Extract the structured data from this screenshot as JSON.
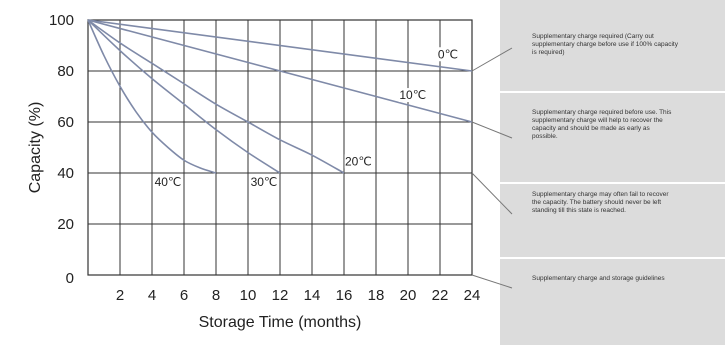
{
  "chart_data": {
    "type": "line",
    "title": "",
    "xlabel": "Storage Time (months)",
    "ylabel": "Capacity  (%)",
    "xlim": [
      0,
      24
    ],
    "ylim": [
      0,
      100
    ],
    "xticks": [
      2,
      4,
      6,
      8,
      10,
      12,
      14,
      16,
      18,
      20,
      22,
      24
    ],
    "yticks": [
      0,
      20,
      40,
      60,
      80,
      100
    ],
    "grid": true,
    "series": [
      {
        "name": "0℃",
        "x": [
          0,
          24
        ],
        "y": [
          100,
          80
        ]
      },
      {
        "name": "10℃",
        "x": [
          0,
          24
        ],
        "y": [
          100,
          60
        ]
      },
      {
        "name": "20℃",
        "x": [
          0,
          2,
          4,
          6,
          8,
          10,
          12,
          14,
          16
        ],
        "y": [
          100,
          91,
          83,
          75,
          67,
          60,
          53,
          47,
          40
        ]
      },
      {
        "name": "30℃",
        "x": [
          0,
          2,
          4,
          6,
          8,
          10,
          12
        ],
        "y": [
          100,
          88,
          77,
          67,
          57,
          48,
          40
        ]
      },
      {
        "name": "40℃",
        "x": [
          0,
          1,
          2,
          3,
          4,
          5,
          6,
          7,
          8
        ],
        "y": [
          100,
          86,
          74,
          64,
          56,
          50,
          45,
          42,
          40
        ]
      }
    ]
  },
  "notes": [
    {
      "text": "Supplementary charge required (Carry out supplementary charge before use if 100% capacity is required)",
      "target_y": 80
    },
    {
      "text": "Supplementary charge required before use. This supplementary charge will help to recover the capacity and should be made as early as possible.",
      "target_y": 60
    },
    {
      "text": "Supplementary charge may often fail to recover the capacity. The battery should never be left standing till this state is reached.",
      "target_y": 40
    },
    {
      "text": "Supplementary charge and storage guidelines",
      "target_y": 0
    }
  ],
  "colors": {
    "curve": "#7f8aa8",
    "panel": "#dcdcdc",
    "grid": "#333333"
  }
}
